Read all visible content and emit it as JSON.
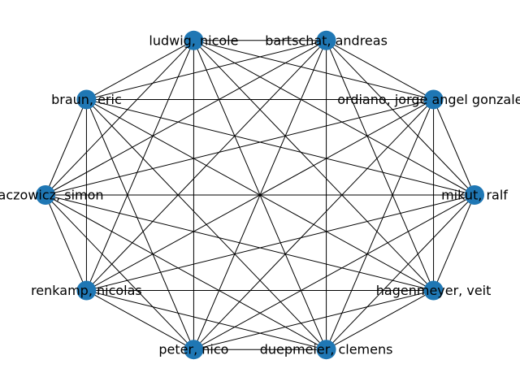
{
  "graph": {
    "layout": "circular",
    "complete": true,
    "node_color": "#1f77b4",
    "edge_color": "#000000",
    "nodes": [
      {
        "id": "ludwig",
        "label": "ludwig, nicole"
      },
      {
        "id": "bartschat",
        "label": "bartschat, andreas"
      },
      {
        "id": "ordiano",
        "label": "ordiano, jorge angel gonzalez"
      },
      {
        "id": "mikut",
        "label": "mikut, ralf"
      },
      {
        "id": "hagenmeyer",
        "label": "hagenmeyer, veit"
      },
      {
        "id": "duepmeier",
        "label": "duepmeier, clemens"
      },
      {
        "id": "peter",
        "label": "peter, nico"
      },
      {
        "id": "renkamp",
        "label": "renkamp, nicolas"
      },
      {
        "id": "waczowicz",
        "label": "waczowicz, simon"
      },
      {
        "id": "braun",
        "label": "braun, eric"
      }
    ]
  }
}
